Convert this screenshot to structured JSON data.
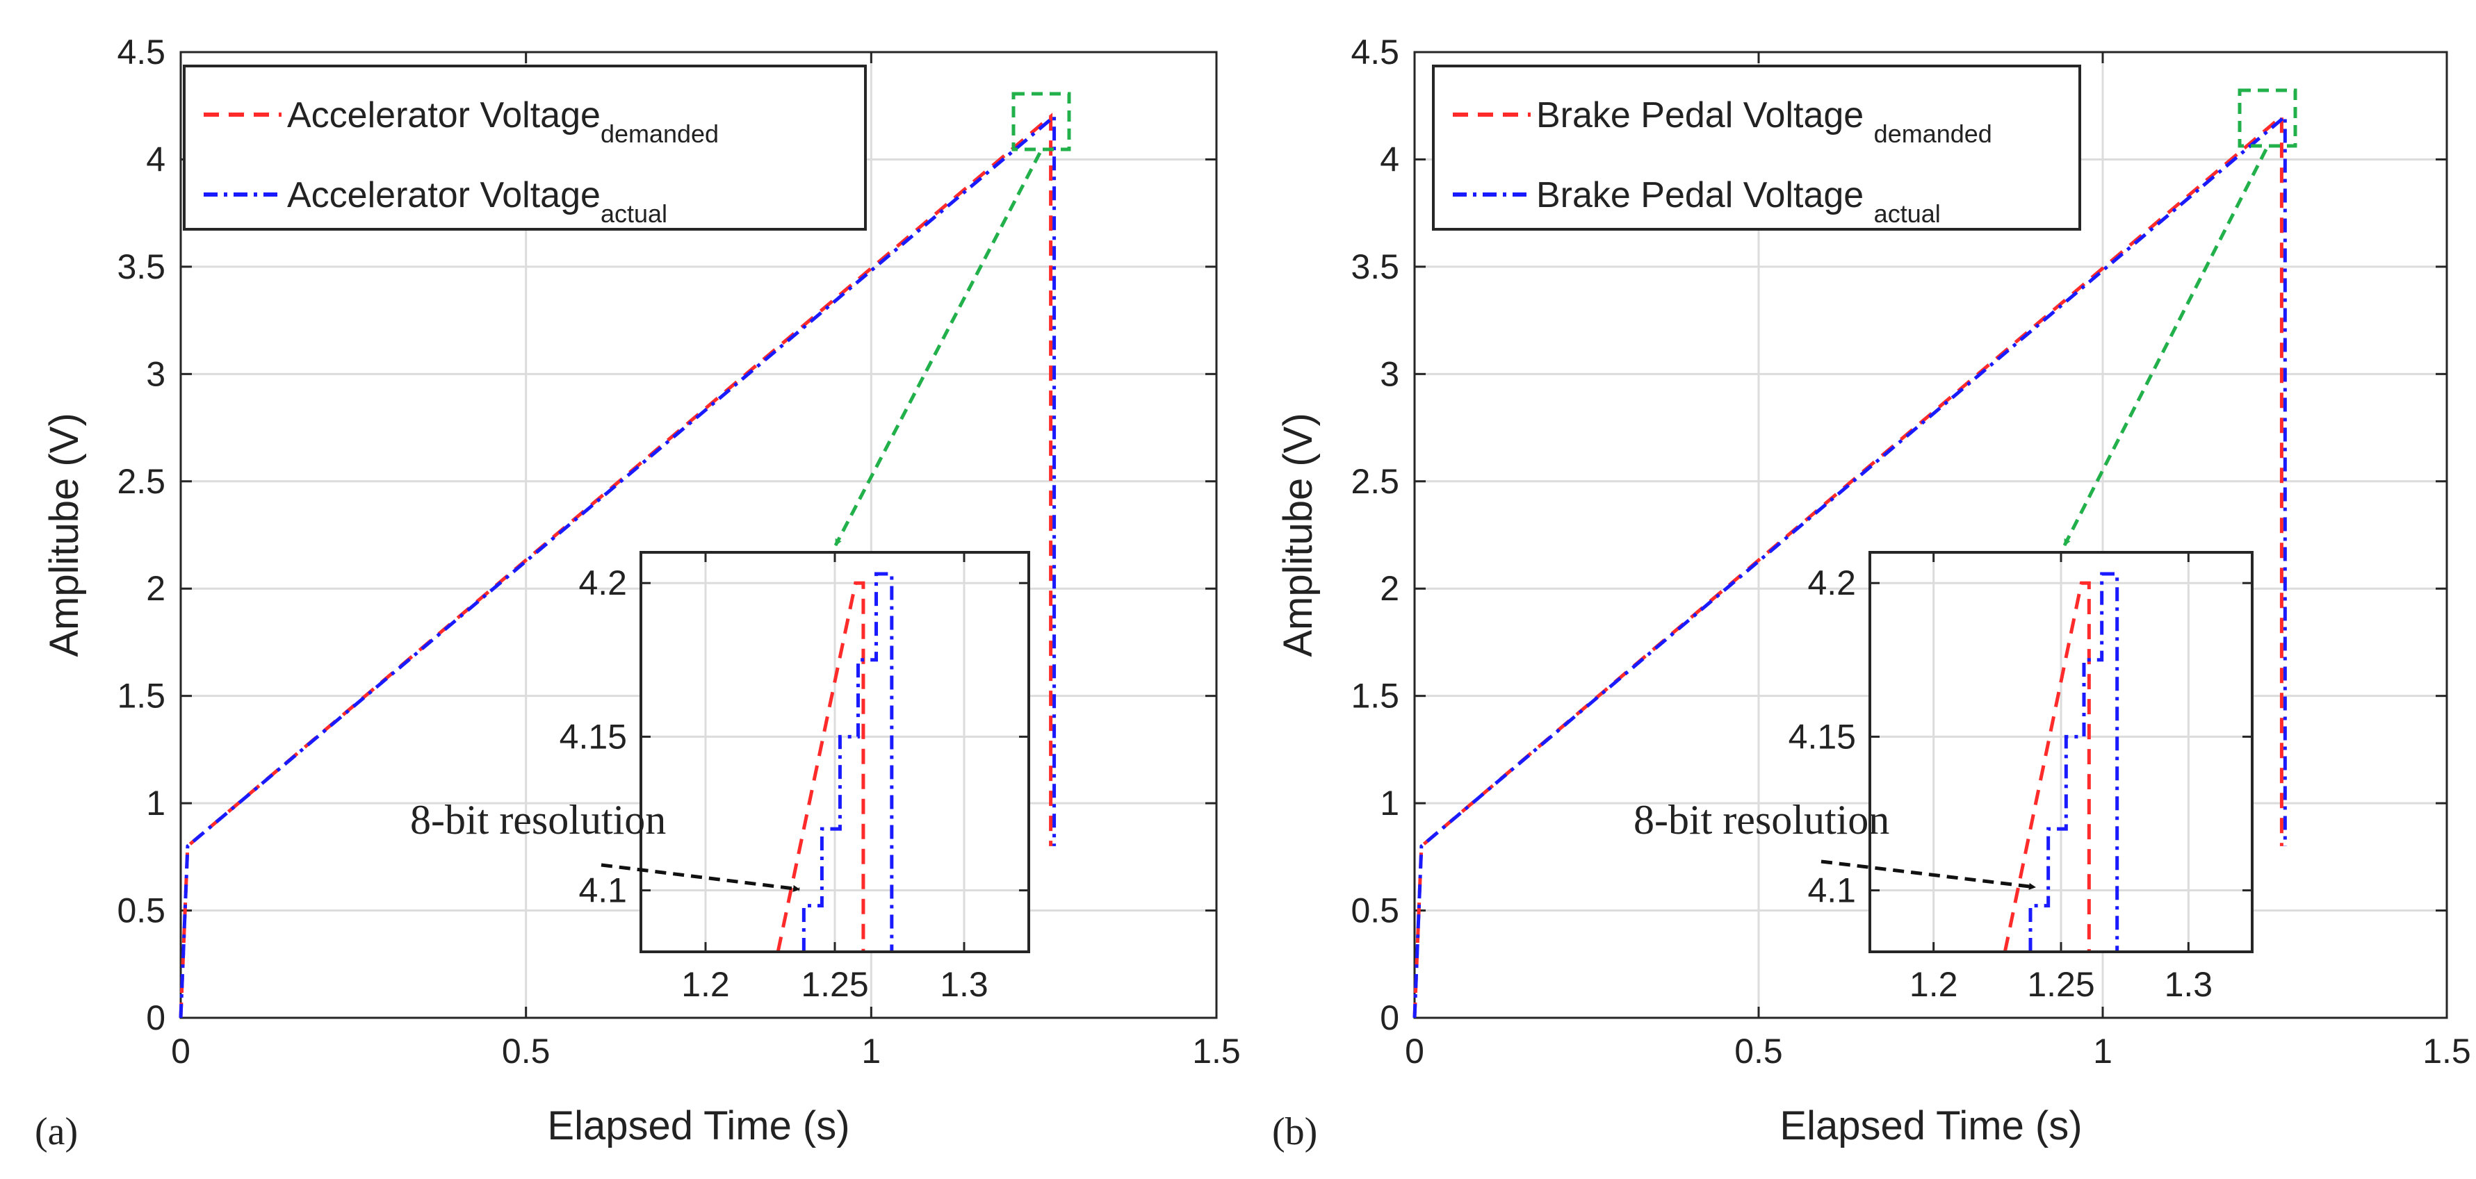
{
  "figure": {
    "panels": [
      {
        "label": "(a)",
        "legend": [
          {
            "text": "Accelerator Voltage",
            "sub": "demanded"
          },
          {
            "text": "Accelerator Voltage",
            "sub": "actual"
          }
        ]
      },
      {
        "label": "(b)",
        "legend": [
          {
            "text": "Brake Pedal Voltage ",
            "sub": "demanded"
          },
          {
            "text": "Brake Pedal Voltage ",
            "sub": "actual"
          }
        ]
      }
    ]
  },
  "chart_data": [
    {
      "type": "line",
      "panel": "(a)",
      "xlabel": "Elapsed Time (s)",
      "ylabel": "Amplitube (V)",
      "xlim": [
        0,
        1.5
      ],
      "ylim": [
        0,
        4.5
      ],
      "xticks": [
        0,
        0.5,
        1,
        1.5
      ],
      "yticks": [
        0,
        0.5,
        1,
        1.5,
        2,
        2.5,
        3,
        3.5,
        4,
        4.5
      ],
      "grid": true,
      "legend_position": "top-left",
      "series": [
        {
          "name": "Accelerator Voltage demanded",
          "style": "dashed",
          "color": "#ff2a2a",
          "x": [
            0,
            0.01,
            1.26,
            1.26
          ],
          "y": [
            0,
            0.8,
            4.2,
            0.8
          ]
        },
        {
          "name": "Accelerator Voltage actual",
          "style": "dashdot",
          "color": "#1a1aff",
          "x": [
            0,
            0.01,
            1.265,
            1.265
          ],
          "y": [
            0,
            0.8,
            4.2,
            0.8
          ]
        }
      ],
      "inset": {
        "xlim": [
          1.175,
          1.325
        ],
        "ylim": [
          4.08,
          4.21
        ],
        "xticks": [
          1.2,
          1.25,
          1.3
        ],
        "yticks": [
          4.1,
          4.15,
          4.2
        ],
        "grid": true,
        "series": [
          {
            "name": "demanded",
            "style": "dashed",
            "color": "#ff2a2a",
            "x": [
              1.228,
              1.258,
              1.261,
              1.261
            ],
            "y": [
              4.08,
              4.2,
              4.2,
              4.08
            ]
          },
          {
            "name": "actual",
            "style": "dashdot",
            "color": "#1a1aff",
            "x": [
              1.238,
              1.238,
              1.245,
              1.245,
              1.252,
              1.252,
              1.259,
              1.259,
              1.266,
              1.266,
              1.272,
              1.272,
              1.272
            ],
            "y": [
              4.08,
              4.095,
              4.095,
              4.12,
              4.12,
              4.15,
              4.15,
              4.175,
              4.175,
              4.203,
              4.203,
              4.203,
              4.08
            ]
          }
        ]
      },
      "annotations": [
        {
          "text": "8-bit resolution"
        }
      ]
    },
    {
      "type": "line",
      "panel": "(b)",
      "xlabel": "Elapsed Time (s)",
      "ylabel": "Amplitube (V)",
      "xlim": [
        0,
        1.5
      ],
      "ylim": [
        0,
        4.5
      ],
      "xticks": [
        0,
        0.5,
        1,
        1.5
      ],
      "yticks": [
        0,
        0.5,
        1,
        1.5,
        2,
        2.5,
        3,
        3.5,
        4,
        4.5
      ],
      "grid": true,
      "legend_position": "top-left",
      "series": [
        {
          "name": "Brake Pedal Voltage demanded",
          "style": "dashed",
          "color": "#ff2a2a",
          "x": [
            0,
            0.01,
            1.26,
            1.26
          ],
          "y": [
            0,
            0.8,
            4.2,
            0.8
          ]
        },
        {
          "name": "Brake Pedal Voltage actual",
          "style": "dashdot",
          "color": "#1a1aff",
          "x": [
            0,
            0.01,
            1.265,
            1.265
          ],
          "y": [
            0,
            0.8,
            4.2,
            0.8
          ]
        }
      ],
      "inset": {
        "xlim": [
          1.175,
          1.325
        ],
        "ylim": [
          4.08,
          4.21
        ],
        "xticks": [
          1.2,
          1.25,
          1.3
        ],
        "yticks": [
          4.1,
          4.15,
          4.2
        ],
        "grid": true,
        "series": [
          {
            "name": "demanded",
            "style": "dashed",
            "color": "#ff2a2a",
            "x": [
              1.228,
              1.258,
              1.261,
              1.261
            ],
            "y": [
              4.08,
              4.2,
              4.2,
              4.08
            ]
          },
          {
            "name": "actual",
            "style": "dashdot",
            "color": "#1a1aff",
            "x": [
              1.238,
              1.238,
              1.245,
              1.245,
              1.252,
              1.252,
              1.259,
              1.259,
              1.266,
              1.266,
              1.272,
              1.272,
              1.272
            ],
            "y": [
              4.08,
              4.095,
              4.095,
              4.12,
              4.12,
              4.15,
              4.15,
              4.175,
              4.175,
              4.203,
              4.203,
              4.203,
              4.08
            ]
          }
        ]
      },
      "annotations": [
        {
          "text": "8-bit resolution"
        }
      ]
    }
  ]
}
